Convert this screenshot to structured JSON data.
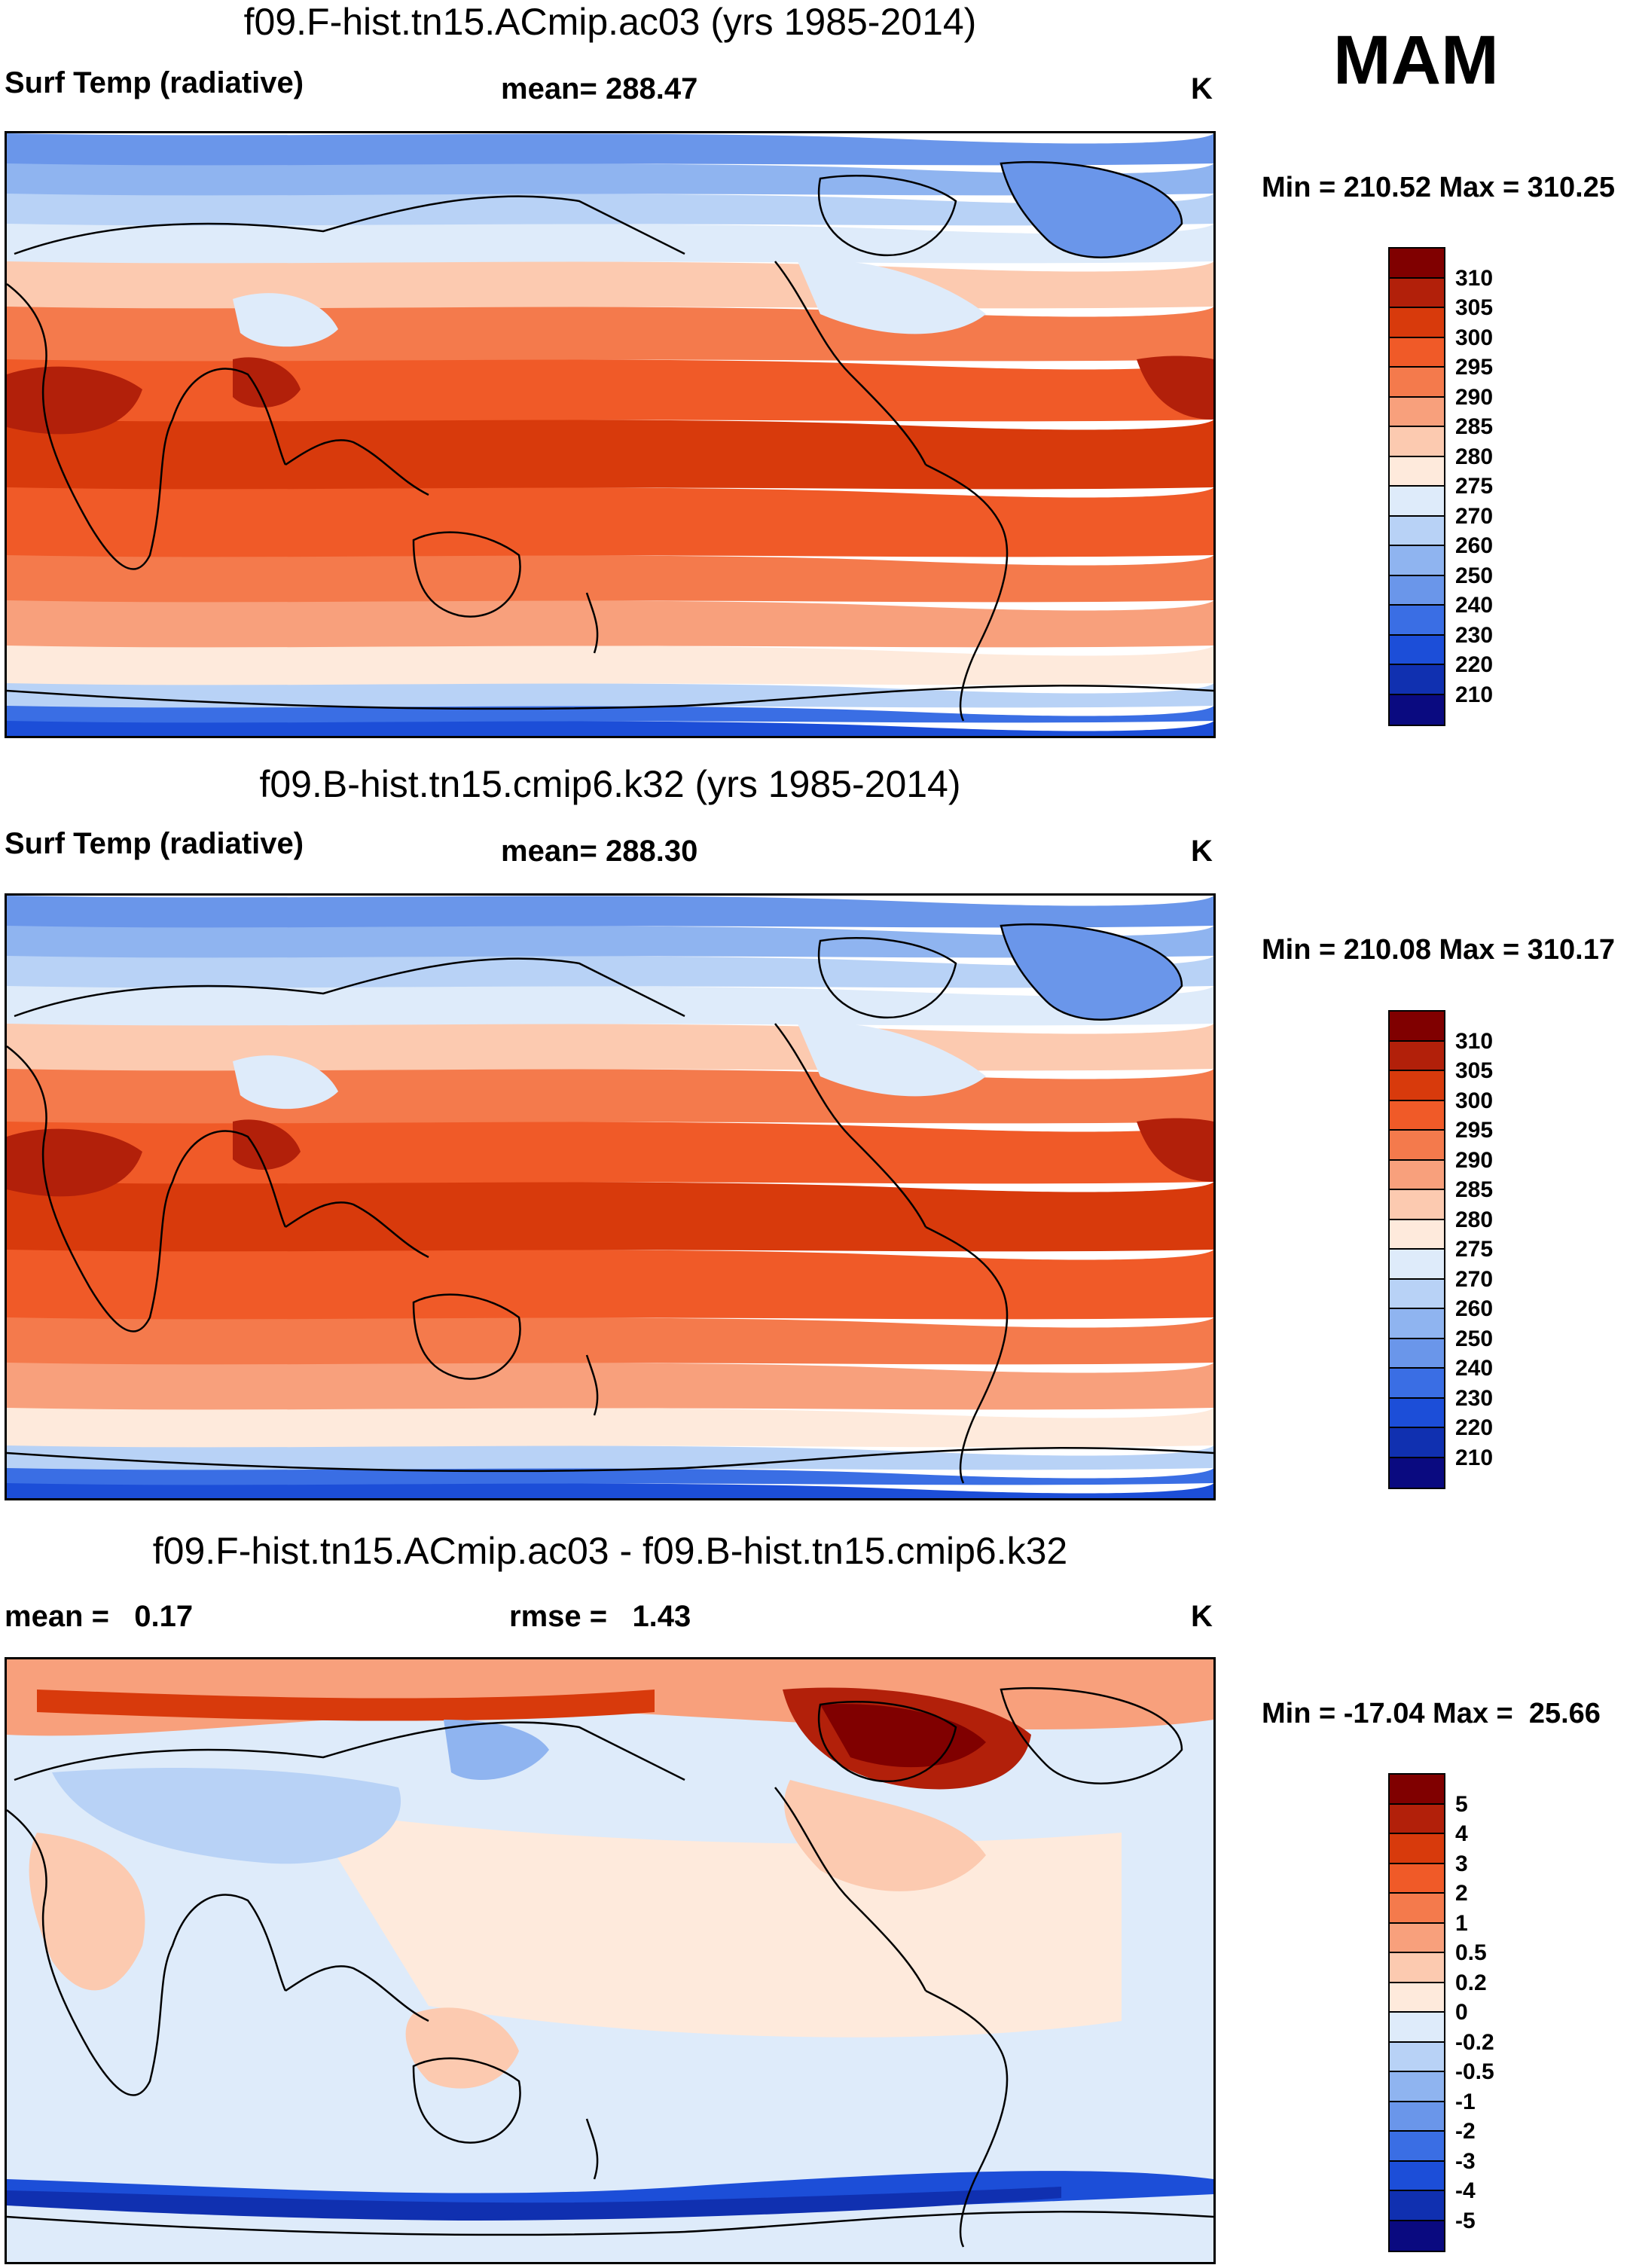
{
  "season": "MAM",
  "panels": [
    {
      "id": "model-a",
      "title": "f09.F-hist.tn15.ACmip.ac03 (yrs 1985-2014)",
      "left_label": "Surf Temp (radiative)",
      "center_label": "mean= 288.47",
      "units": "K",
      "minmax": "Min = 210.52 Max = 310.25",
      "kind": "abs"
    },
    {
      "id": "model-b",
      "title": "f09.B-hist.tn15.cmip6.k32 (yrs 1985-2014)",
      "left_label": "Surf Temp (radiative)",
      "center_label": "mean= 288.30",
      "units": "K",
      "minmax": "Min = 210.08 Max = 310.17",
      "kind": "abs"
    },
    {
      "id": "difference",
      "title": "f09.F-hist.tn15.ACmip.ac03 - f09.B-hist.tn15.cmip6.k32",
      "left_label": "mean =   0.17",
      "center_label": "rmse =   1.43",
      "units": "K",
      "minmax": "Min = -17.04 Max =  25.66",
      "kind": "diff"
    }
  ],
  "colorbars": {
    "abs": {
      "colors": [
        "#800000",
        "#b2200a",
        "#d83a0c",
        "#f05a28",
        "#f47a4c",
        "#f8a07c",
        "#fccab0",
        "#feeadc",
        "#deebfa",
        "#b8d2f6",
        "#8fb4f0",
        "#6a96ea",
        "#3a6ee4",
        "#1c4ed8",
        "#1030b0",
        "#0a0a80"
      ],
      "labels": [
        "310",
        "305",
        "300",
        "295",
        "290",
        "285",
        "280",
        "275",
        "270",
        "260",
        "250",
        "240",
        "230",
        "220",
        "210"
      ]
    },
    "diff": {
      "colors": [
        "#800000",
        "#b2200a",
        "#d83a0c",
        "#f05a28",
        "#f47a4c",
        "#f8a07c",
        "#fccab0",
        "#feeadc",
        "#deebfa",
        "#b8d2f6",
        "#8fb4f0",
        "#6a96ea",
        "#3a6ee4",
        "#1c4ed8",
        "#1030b0",
        "#0a0a80"
      ],
      "labels": [
        "5",
        "4",
        "3",
        "2",
        "1",
        "0.5",
        "0.2",
        "0",
        "-0.2",
        "-0.5",
        "-1",
        "-2",
        "-3",
        "-4",
        "-5"
      ]
    }
  }
}
